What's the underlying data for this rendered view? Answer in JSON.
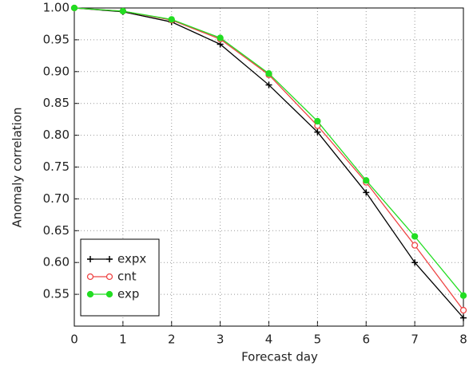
{
  "chart_data": {
    "type": "line",
    "x_label": "Forecast day",
    "y_label": "Anomaly correlation",
    "x": [
      0,
      1,
      2,
      3,
      4,
      5,
      6,
      7,
      8
    ],
    "series": [
      {
        "name": "expx",
        "color": "#000000",
        "marker": "plus",
        "values": [
          1.0,
          0.994,
          0.978,
          0.943,
          0.879,
          0.805,
          0.71,
          0.6,
          0.513
        ]
      },
      {
        "name": "cnt",
        "color": "#ee4444",
        "marker": "open-circle",
        "values": [
          1.0,
          0.995,
          0.981,
          0.951,
          0.895,
          0.815,
          0.726,
          0.627,
          0.525
        ]
      },
      {
        "name": "exp",
        "color": "#22dd22",
        "marker": "filled-circle",
        "values": [
          1.0,
          0.995,
          0.982,
          0.953,
          0.897,
          0.822,
          0.729,
          0.641,
          0.548
        ]
      }
    ],
    "xlim": [
      0,
      8
    ],
    "xticks": [
      0,
      1,
      2,
      3,
      4,
      5,
      6,
      7,
      8
    ],
    "ylim": [
      0.5,
      1.0
    ],
    "yticks": [
      {
        "value": 0.55,
        "label": "0.55"
      },
      {
        "value": 0.6,
        "label": "0.60"
      },
      {
        "value": 0.65,
        "label": "0.65"
      },
      {
        "value": 0.7,
        "label": "0.70"
      },
      {
        "value": 0.75,
        "label": "0.75"
      },
      {
        "value": 0.8,
        "label": "0.80"
      },
      {
        "value": 0.85,
        "label": "0.85"
      },
      {
        "value": 0.9,
        "label": "0.90"
      },
      {
        "value": 0.95,
        "label": "0.95"
      },
      {
        "value": 1.0,
        "label": "1.00"
      }
    ],
    "grid": true,
    "legend": "lower-left"
  }
}
